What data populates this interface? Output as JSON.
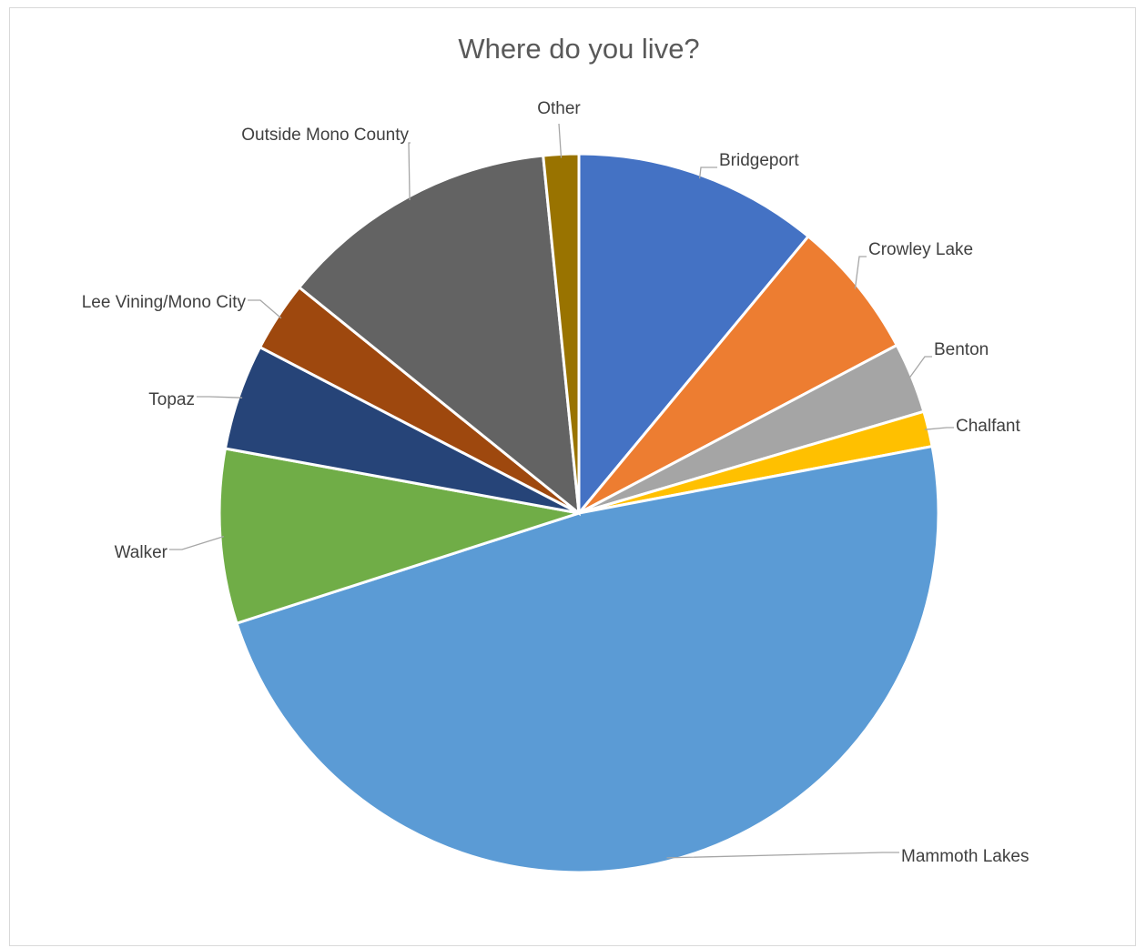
{
  "chart_data": {
    "type": "pie",
    "title": "Where do you live?",
    "categories": [
      "Bridgeport",
      "Crowley Lake",
      "Benton",
      "Chalfant",
      "Mammoth Lakes",
      "Walker",
      "Topaz",
      "Lee Vining/Mono City",
      "Outside Mono County",
      "Other"
    ],
    "values": [
      11.1,
      6.3,
      3.2,
      1.6,
      48.4,
      7.9,
      4.8,
      3.2,
      12.7,
      1.6
    ],
    "unit": "%",
    "colors": [
      "#4472C4",
      "#ED7D31",
      "#A5A5A5",
      "#FFC000",
      "#5B9BD5",
      "#70AD47",
      "#264478",
      "#9E480E",
      "#636363",
      "#997300"
    ],
    "legend": "none",
    "data_labels": "category name"
  }
}
